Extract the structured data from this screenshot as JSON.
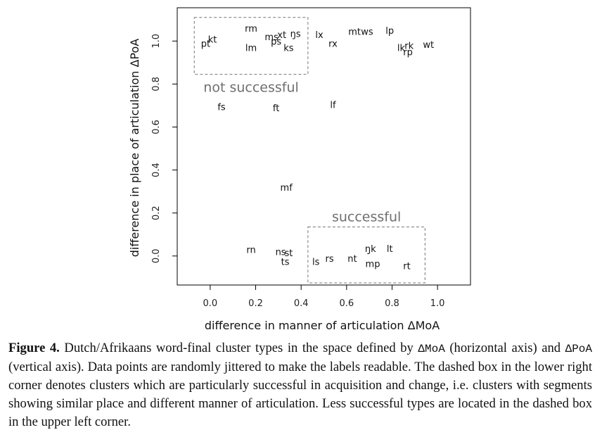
{
  "chart_data": {
    "type": "scatter",
    "xlabel": "difference in manner of articulation ΔMoA",
    "ylabel": "difference in place of articulation ΔPoA",
    "xlim": [
      -0.145,
      1.145
    ],
    "ylim": [
      -0.135,
      1.155
    ],
    "xticks": [
      0.0,
      0.2,
      0.4,
      0.6,
      0.8,
      1.0
    ],
    "yticks": [
      0.0,
      0.2,
      0.4,
      0.6,
      0.8,
      1.0
    ],
    "xtick_labels": [
      "0.0",
      "0.2",
      "0.4",
      "0.6",
      "0.8",
      "1.0"
    ],
    "ytick_labels": [
      "0.0",
      "0.2",
      "0.4",
      "0.6",
      "0.8",
      "1.0"
    ],
    "grid": false,
    "points": [
      {
        "label": "pt",
        "x": -0.02,
        "y": 0.99
      },
      {
        "label": "kt",
        "x": 0.01,
        "y": 1.01
      },
      {
        "label": "rm",
        "x": 0.18,
        "y": 1.06
      },
      {
        "label": "lm",
        "x": 0.18,
        "y": 0.97
      },
      {
        "label": "ms",
        "x": 0.27,
        "y": 1.02
      },
      {
        "label": "ps",
        "x": 0.29,
        "y": 1.0
      },
      {
        "label": "xt",
        "x": 0.315,
        "y": 1.03
      },
      {
        "label": "ks",
        "x": 0.345,
        "y": 0.97
      },
      {
        "label": "ŋs",
        "x": 0.375,
        "y": 1.035
      },
      {
        "label": "lx",
        "x": 0.48,
        "y": 1.03
      },
      {
        "label": "rx",
        "x": 0.54,
        "y": 0.99
      },
      {
        "label": "mt",
        "x": 0.635,
        "y": 1.045
      },
      {
        "label": "ws",
        "x": 0.69,
        "y": 1.045
      },
      {
        "label": "lp",
        "x": 0.79,
        "y": 1.05
      },
      {
        "label": "lk",
        "x": 0.84,
        "y": 0.97
      },
      {
        "label": "rk",
        "x": 0.875,
        "y": 0.98
      },
      {
        "label": "rp",
        "x": 0.87,
        "y": 0.95
      },
      {
        "label": "wt",
        "x": 0.96,
        "y": 0.985
      },
      {
        "label": "fs",
        "x": 0.05,
        "y": 0.695
      },
      {
        "label": "ft",
        "x": 0.29,
        "y": 0.69
      },
      {
        "label": "lf",
        "x": 0.54,
        "y": 0.705
      },
      {
        "label": "mf",
        "x": 0.335,
        "y": 0.32
      },
      {
        "label": "rn",
        "x": 0.18,
        "y": 0.03
      },
      {
        "label": "ns",
        "x": 0.31,
        "y": 0.02
      },
      {
        "label": "st",
        "x": 0.345,
        "y": 0.015
      },
      {
        "label": "ts",
        "x": 0.33,
        "y": -0.025
      },
      {
        "label": "ls",
        "x": 0.465,
        "y": -0.025
      },
      {
        "label": "rs",
        "x": 0.525,
        "y": -0.01
      },
      {
        "label": "nt",
        "x": 0.625,
        "y": -0.01
      },
      {
        "label": "ŋk",
        "x": 0.705,
        "y": 0.035
      },
      {
        "label": "lt",
        "x": 0.79,
        "y": 0.035
      },
      {
        "label": "mp",
        "x": 0.715,
        "y": -0.035
      },
      {
        "label": "rt",
        "x": 0.865,
        "y": -0.045
      }
    ],
    "regions": [
      {
        "label": "not successful",
        "x": [
          -0.07,
          0.43
        ],
        "y": [
          0.845,
          1.11
        ],
        "style": "dashed"
      },
      {
        "label": "successful",
        "x": [
          0.43,
          0.945
        ],
        "y": [
          -0.125,
          0.135
        ],
        "style": "dashed"
      }
    ]
  },
  "caption": {
    "figure_label": "Figure 4.",
    "part1": " Dutch/Afrikaans word-final cluster types in the space defined by ",
    "mono1": "ΔMoA",
    "part2": " (horizontal axis) and ",
    "mono2": "ΔPoA",
    "part3": " (vertical axis). Data points are randomly jittered to make the labels readable. The dashed box in the lower right corner denotes clusters which are particularly successful in acquisition and change, i.e. clusters with segments showing similar place and different manner of articulation. Less successful types are located in the dashed box in the upper left corner."
  }
}
